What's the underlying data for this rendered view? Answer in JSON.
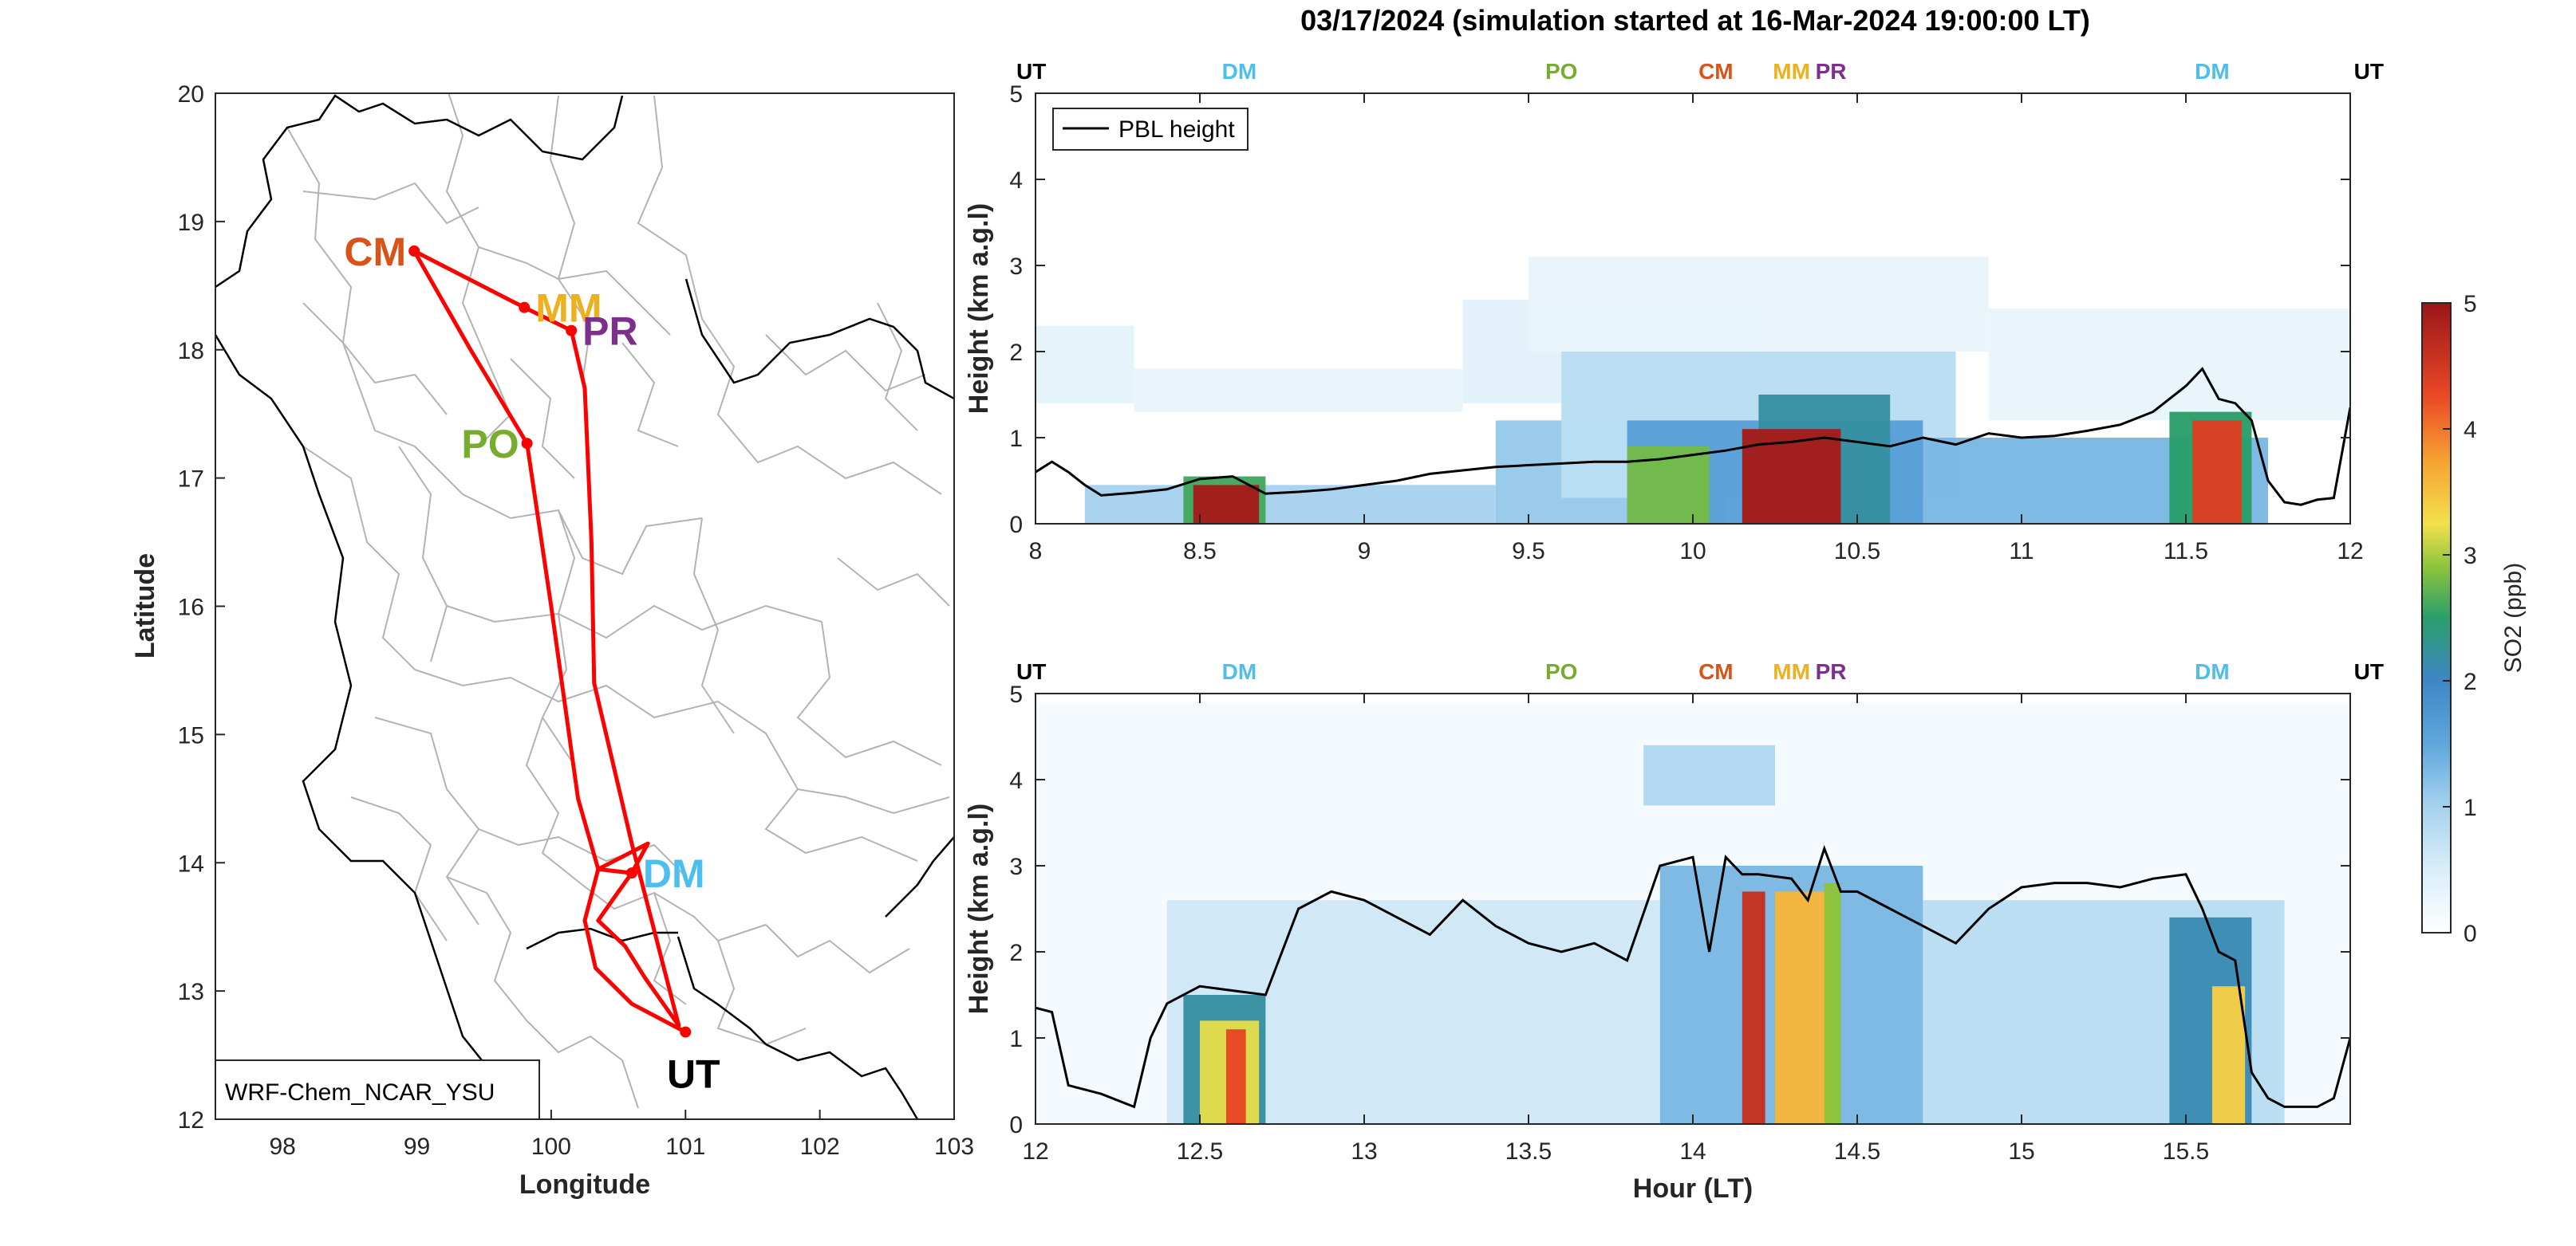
{
  "figure_title": "03/17/2024 (simulation started at 16-Mar-2024 19:00:00 LT)",
  "colors": {
    "CM": "#d95319",
    "MM": "#edb120",
    "PR": "#7e2f8e",
    "PO": "#77ac30",
    "DM": "#4dbeee",
    "UT": "#000000",
    "flight_track": "#ff0000",
    "province_borders": "#b3b3b3",
    "coast": "#000000"
  },
  "map": {
    "xlabel": "Longitude",
    "ylabel": "Latitude",
    "xlim": [
      97.5,
      103
    ],
    "ylim": [
      12,
      20
    ],
    "xticks": [
      "98",
      "99",
      "100",
      "101",
      "102",
      "103"
    ],
    "yticks": [
      "12",
      "13",
      "14",
      "15",
      "16",
      "17",
      "18",
      "19",
      "20"
    ],
    "model_label": "WRF-Chem_NCAR_YSU",
    "sites": [
      {
        "name": "CM",
        "lon": 98.98,
        "lat": 18.77,
        "label_side": "left"
      },
      {
        "name": "MM",
        "lon": 99.8,
        "lat": 18.33,
        "label_side": "right"
      },
      {
        "name": "PR",
        "lon": 100.15,
        "lat": 18.15,
        "label_side": "right"
      },
      {
        "name": "PO",
        "lon": 99.82,
        "lat": 17.27,
        "label_side": "left"
      },
      {
        "name": "DM",
        "lon": 100.6,
        "lat": 13.92,
        "label_side": "right"
      },
      {
        "name": "UT",
        "lon": 101.0,
        "lat": 12.68,
        "label_side": "below"
      }
    ],
    "track": [
      [
        101.0,
        12.68
      ],
      [
        100.6,
        12.9
      ],
      [
        100.33,
        13.18
      ],
      [
        100.25,
        13.55
      ],
      [
        100.35,
        13.95
      ],
      [
        100.72,
        14.15
      ],
      [
        100.6,
        13.92
      ],
      [
        100.45,
        13.7
      ],
      [
        100.35,
        13.55
      ],
      [
        100.55,
        13.35
      ],
      [
        100.7,
        13.1
      ],
      [
        100.95,
        12.73
      ],
      [
        100.6,
        14.15
      ],
      [
        100.32,
        15.4
      ],
      [
        100.3,
        16.5
      ],
      [
        100.25,
        17.7
      ],
      [
        100.15,
        18.15
      ],
      [
        99.8,
        18.33
      ],
      [
        98.98,
        18.77
      ],
      [
        99.4,
        18.0
      ],
      [
        99.82,
        17.27
      ],
      [
        100.0,
        16.0
      ],
      [
        100.2,
        14.5
      ],
      [
        100.35,
        13.95
      ],
      [
        100.6,
        13.92
      ]
    ]
  },
  "chart_data": [
    {
      "type": "heatmap",
      "panel": "top",
      "xlabel": "",
      "ylabel": "Height (km a.g.l)",
      "xlim": [
        8,
        12
      ],
      "ylim": [
        0,
        5
      ],
      "xticks": [
        "8",
        "8.5",
        "9",
        "9.5",
        "10",
        "10.5",
        "11",
        "11.5",
        "12"
      ],
      "yticks": [
        "0",
        "1",
        "2",
        "3",
        "4",
        "5"
      ],
      "legend": {
        "entries": [
          "PBL height"
        ],
        "location": "top-left"
      },
      "site_markers": [
        {
          "name": "UT",
          "x": 8.0
        },
        {
          "name": "DM",
          "x": 8.62
        },
        {
          "name": "PO",
          "x": 9.6
        },
        {
          "name": "CM",
          "x": 10.07
        },
        {
          "name": "MM",
          "x": 10.3
        },
        {
          "name": "PR",
          "x": 10.42
        },
        {
          "name": "DM",
          "x": 11.58
        },
        {
          "name": "UT",
          "x": 11.96
        }
      ],
      "pbl_height": {
        "x": [
          8.0,
          8.05,
          8.1,
          8.15,
          8.2,
          8.3,
          8.4,
          8.5,
          8.6,
          8.7,
          8.8,
          8.9,
          9.0,
          9.1,
          9.2,
          9.3,
          9.4,
          9.5,
          9.6,
          9.7,
          9.8,
          9.9,
          10.0,
          10.1,
          10.2,
          10.3,
          10.4,
          10.5,
          10.6,
          10.7,
          10.8,
          10.9,
          11.0,
          11.1,
          11.2,
          11.3,
          11.4,
          11.5,
          11.55,
          11.6,
          11.65,
          11.7,
          11.75,
          11.8,
          11.85,
          11.9,
          11.95,
          12.0
        ],
        "values": [
          0.6,
          0.72,
          0.6,
          0.45,
          0.33,
          0.36,
          0.4,
          0.52,
          0.55,
          0.35,
          0.37,
          0.4,
          0.45,
          0.5,
          0.58,
          0.62,
          0.66,
          0.68,
          0.7,
          0.72,
          0.72,
          0.75,
          0.8,
          0.85,
          0.92,
          0.95,
          1.0,
          0.95,
          0.9,
          1.0,
          0.92,
          1.05,
          1.0,
          1.02,
          1.08,
          1.15,
          1.3,
          1.6,
          1.8,
          1.45,
          1.4,
          1.2,
          0.5,
          0.25,
          0.22,
          0.28,
          0.3,
          1.35
        ]
      },
      "so2_regions": [
        {
          "x0": 8.0,
          "x1": 8.3,
          "y0": 1.4,
          "y1": 2.3,
          "value": 0.35
        },
        {
          "x0": 8.3,
          "x1": 9.3,
          "y0": 1.3,
          "y1": 1.8,
          "value": 0.3
        },
        {
          "x0": 9.3,
          "x1": 10.2,
          "y0": 1.4,
          "y1": 2.6,
          "value": 0.4
        },
        {
          "x0": 9.5,
          "x1": 10.9,
          "y0": 2.0,
          "y1": 3.1,
          "value": 0.3
        },
        {
          "x0": 10.9,
          "x1": 12.0,
          "y0": 1.2,
          "y1": 2.5,
          "value": 0.3
        },
        {
          "x0": 8.15,
          "x1": 9.4,
          "y0": 0.0,
          "y1": 0.45,
          "value": 1.0
        },
        {
          "x0": 9.4,
          "x1": 10.1,
          "y0": 0.0,
          "y1": 1.2,
          "value": 1.1
        },
        {
          "x0": 9.6,
          "x1": 10.8,
          "y0": 0.3,
          "y1": 2.0,
          "value": 0.8
        },
        {
          "x0": 10.4,
          "x1": 11.75,
          "y0": 0.0,
          "y1": 1.0,
          "value": 1.3
        },
        {
          "x0": 9.8,
          "x1": 10.7,
          "y0": 0.0,
          "y1": 1.2,
          "value": 1.6
        },
        {
          "x0": 8.45,
          "x1": 8.7,
          "y0": 0.0,
          "y1": 0.55,
          "value": 2.6
        },
        {
          "x0": 8.48,
          "x1": 8.68,
          "y0": 0.0,
          "y1": 0.45,
          "value": 4.9
        },
        {
          "x0": 9.8,
          "x1": 10.05,
          "y0": 0.0,
          "y1": 0.9,
          "value": 2.8
        },
        {
          "x0": 10.2,
          "x1": 10.6,
          "y0": 0.0,
          "y1": 1.5,
          "value": 2.2
        },
        {
          "x0": 10.15,
          "x1": 10.45,
          "y0": 0.0,
          "y1": 1.1,
          "value": 4.9
        },
        {
          "x0": 11.45,
          "x1": 11.7,
          "y0": 0.0,
          "y1": 1.3,
          "value": 2.5
        },
        {
          "x0": 11.52,
          "x1": 11.67,
          "y0": 0.0,
          "y1": 1.2,
          "value": 4.4
        }
      ]
    },
    {
      "type": "heatmap",
      "panel": "bottom",
      "xlabel": "Hour (LT)",
      "ylabel": "Height (km a.g.l)",
      "xlim": [
        12,
        16
      ],
      "ylim": [
        0,
        5
      ],
      "xticks": [
        "12",
        "12.5",
        "13",
        "13.5",
        "14",
        "14.5",
        "15",
        "15.5"
      ],
      "yticks": [
        "0",
        "1",
        "2",
        "3",
        "4",
        "5"
      ],
      "site_markers": [
        {
          "name": "UT",
          "x": 12.0
        },
        {
          "name": "DM",
          "x": 12.62
        },
        {
          "name": "PO",
          "x": 13.6
        },
        {
          "name": "CM",
          "x": 14.07
        },
        {
          "name": "MM",
          "x": 14.3
        },
        {
          "name": "PR",
          "x": 14.42
        },
        {
          "name": "DM",
          "x": 15.58
        },
        {
          "name": "UT",
          "x": 15.96
        }
      ],
      "pbl_height": {
        "x": [
          12.0,
          12.05,
          12.1,
          12.2,
          12.3,
          12.35,
          12.4,
          12.5,
          12.6,
          12.7,
          12.8,
          12.9,
          13.0,
          13.1,
          13.2,
          13.3,
          13.4,
          13.5,
          13.6,
          13.7,
          13.8,
          13.9,
          14.0,
          14.05,
          14.1,
          14.15,
          14.2,
          14.3,
          14.35,
          14.4,
          14.45,
          14.5,
          14.6,
          14.7,
          14.8,
          14.9,
          15.0,
          15.1,
          15.2,
          15.3,
          15.4,
          15.5,
          15.55,
          15.6,
          15.65,
          15.7,
          15.75,
          15.8,
          15.9,
          15.95,
          16.0
        ],
        "values": [
          1.35,
          1.3,
          0.45,
          0.35,
          0.2,
          1.0,
          1.4,
          1.6,
          1.55,
          1.5,
          2.5,
          2.7,
          2.6,
          2.4,
          2.2,
          2.6,
          2.3,
          2.1,
          2.0,
          2.1,
          1.9,
          3.0,
          3.1,
          2.0,
          3.1,
          2.9,
          2.9,
          2.85,
          2.6,
          3.2,
          2.7,
          2.7,
          2.5,
          2.3,
          2.1,
          2.5,
          2.75,
          2.8,
          2.8,
          2.75,
          2.85,
          2.9,
          2.5,
          2.0,
          1.9,
          0.6,
          0.3,
          0.2,
          0.2,
          0.3,
          1.0
        ]
      },
      "so2_regions": [
        {
          "x0": 12.0,
          "x1": 16.0,
          "y0": 0.0,
          "y1": 4.9,
          "value": 0.15
        },
        {
          "x0": 12.4,
          "x1": 13.9,
          "y0": 0.0,
          "y1": 2.6,
          "value": 0.6
        },
        {
          "x0": 13.85,
          "x1": 14.25,
          "y0": 3.7,
          "y1": 4.4,
          "value": 0.9
        },
        {
          "x0": 13.9,
          "x1": 14.7,
          "y0": 0.0,
          "y1": 3.0,
          "value": 1.3
        },
        {
          "x0": 14.7,
          "x1": 15.8,
          "y0": 0.0,
          "y1": 2.6,
          "value": 0.8
        },
        {
          "x0": 12.45,
          "x1": 12.7,
          "y0": 0.0,
          "y1": 1.5,
          "value": 2.2
        },
        {
          "x0": 12.5,
          "x1": 12.68,
          "y0": 0.0,
          "y1": 1.2,
          "value": 3.2
        },
        {
          "x0": 12.58,
          "x1": 12.64,
          "y0": 0.0,
          "y1": 1.1,
          "value": 4.3
        },
        {
          "x0": 14.15,
          "x1": 14.22,
          "y0": 0.0,
          "y1": 2.7,
          "value": 4.6
        },
        {
          "x0": 14.25,
          "x1": 14.42,
          "y0": 0.0,
          "y1": 2.7,
          "value": 3.6
        },
        {
          "x0": 14.4,
          "x1": 14.45,
          "y0": 0.0,
          "y1": 2.8,
          "value": 2.9
        },
        {
          "x0": 15.45,
          "x1": 15.7,
          "y0": 0.0,
          "y1": 2.4,
          "value": 2.1
        },
        {
          "x0": 15.58,
          "x1": 15.68,
          "y0": 0.0,
          "y1": 1.6,
          "value": 3.4
        }
      ]
    }
  ],
  "colorbar": {
    "label": "SO2 (ppb)",
    "ticks": [
      "0",
      "1",
      "2",
      "3",
      "4",
      "5"
    ],
    "range": [
      0,
      5
    ]
  }
}
